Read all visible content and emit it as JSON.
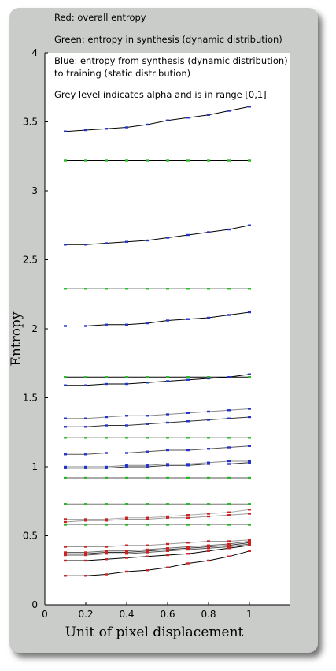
{
  "chart_data": {
    "type": "line",
    "title": "",
    "xlabel": "Unit of pixel displacement",
    "ylabel": "Entropy",
    "xlim": [
      0,
      1.2
    ],
    "ylim": [
      0,
      4
    ],
    "xticks": [
      "0",
      "0.2",
      "0.4",
      "0.6",
      "0.8",
      "1"
    ],
    "yticks": [
      "0",
      "0.5",
      "1",
      "1.5",
      "2",
      "2.5",
      "3",
      "3.5",
      "4"
    ],
    "grid": false,
    "legend_placement": "top-left",
    "annotations": [
      "Red: overall entropy",
      "Green: entropy in synthesis (dynamic distribution)",
      "Blue: entropy from synthesis (dynamic distribution)",
      "to training (static distribution)",
      "Grey level indicates alpha and is in range [0,1]"
    ],
    "colors": {
      "red": "#cc2222",
      "green": "#22bb22",
      "blue": "#2233cc"
    },
    "x": [
      0.1,
      0.2,
      0.3,
      0.4,
      0.5,
      0.6,
      0.7,
      0.8,
      0.9,
      1.0
    ],
    "series": [
      {
        "color": "blue",
        "line_color": "#000000",
        "values": [
          3.43,
          3.44,
          3.45,
          3.46,
          3.48,
          3.51,
          3.53,
          3.55,
          3.58,
          3.61
        ]
      },
      {
        "color": "green",
        "line_color": "#000000",
        "values": [
          3.22,
          3.22,
          3.22,
          3.22,
          3.22,
          3.22,
          3.22,
          3.22,
          3.22,
          3.22
        ]
      },
      {
        "color": "blue",
        "line_color": "#000000",
        "values": [
          2.61,
          2.61,
          2.62,
          2.63,
          2.64,
          2.66,
          2.68,
          2.7,
          2.72,
          2.75
        ]
      },
      {
        "color": "green",
        "line_color": "#000000",
        "values": [
          2.29,
          2.29,
          2.29,
          2.29,
          2.29,
          2.29,
          2.29,
          2.29,
          2.29,
          2.29
        ]
      },
      {
        "color": "blue",
        "line_color": "#000000",
        "values": [
          2.02,
          2.02,
          2.03,
          2.03,
          2.04,
          2.06,
          2.07,
          2.08,
          2.1,
          2.12
        ]
      },
      {
        "color": "green",
        "line_color": "#000000",
        "values": [
          1.65,
          1.65,
          1.65,
          1.65,
          1.65,
          1.65,
          1.65,
          1.65,
          1.65,
          1.65
        ]
      },
      {
        "color": "blue",
        "line_color": "#000000",
        "values": [
          1.59,
          1.59,
          1.6,
          1.6,
          1.61,
          1.62,
          1.63,
          1.64,
          1.65,
          1.67
        ]
      },
      {
        "color": "blue",
        "line_color": "#888888",
        "values": [
          1.35,
          1.35,
          1.36,
          1.37,
          1.37,
          1.38,
          1.39,
          1.4,
          1.41,
          1.42
        ]
      },
      {
        "color": "blue",
        "line_color": "#333333",
        "values": [
          1.29,
          1.29,
          1.3,
          1.3,
          1.31,
          1.32,
          1.33,
          1.34,
          1.35,
          1.36
        ]
      },
      {
        "color": "green",
        "line_color": "#333333",
        "values": [
          1.21,
          1.21,
          1.21,
          1.21,
          1.21,
          1.21,
          1.21,
          1.21,
          1.21,
          1.21
        ]
      },
      {
        "color": "blue",
        "line_color": "#555555",
        "values": [
          1.09,
          1.09,
          1.1,
          1.1,
          1.11,
          1.12,
          1.12,
          1.13,
          1.14,
          1.15
        ]
      },
      {
        "color": "blue",
        "line_color": "#888888",
        "values": [
          1.0,
          1.0,
          1.0,
          1.01,
          1.01,
          1.02,
          1.02,
          1.03,
          1.04,
          1.04
        ]
      },
      {
        "color": "blue",
        "line_color": "#333333",
        "values": [
          0.99,
          0.99,
          0.99,
          1.0,
          1.0,
          1.01,
          1.01,
          1.02,
          1.02,
          1.03
        ]
      },
      {
        "color": "green",
        "line_color": "#555555",
        "values": [
          0.92,
          0.92,
          0.92,
          0.92,
          0.92,
          0.92,
          0.92,
          0.92,
          0.92,
          0.92
        ]
      },
      {
        "color": "green",
        "line_color": "#777777",
        "values": [
          0.73,
          0.73,
          0.73,
          0.73,
          0.73,
          0.73,
          0.73,
          0.73,
          0.73,
          0.73
        ]
      },
      {
        "color": "red",
        "line_color": "#aaaaaa",
        "values": [
          0.62,
          0.62,
          0.62,
          0.63,
          0.63,
          0.64,
          0.65,
          0.66,
          0.67,
          0.69
        ]
      },
      {
        "color": "red",
        "line_color": "#999999",
        "values": [
          0.6,
          0.61,
          0.61,
          0.62,
          0.62,
          0.63,
          0.63,
          0.64,
          0.65,
          0.66
        ]
      },
      {
        "color": "green",
        "line_color": "#aaaaaa",
        "values": [
          0.58,
          0.58,
          0.58,
          0.58,
          0.58,
          0.58,
          0.58,
          0.58,
          0.58,
          0.58
        ]
      },
      {
        "color": "red",
        "line_color": "#999999",
        "values": [
          0.42,
          0.42,
          0.42,
          0.43,
          0.43,
          0.44,
          0.45,
          0.46,
          0.46,
          0.47
        ]
      },
      {
        "color": "red",
        "line_color": "#666666",
        "values": [
          0.38,
          0.38,
          0.39,
          0.39,
          0.4,
          0.41,
          0.42,
          0.43,
          0.44,
          0.46
        ]
      },
      {
        "color": "red",
        "line_color": "#333333",
        "values": [
          0.37,
          0.37,
          0.38,
          0.38,
          0.39,
          0.4,
          0.41,
          0.42,
          0.43,
          0.45
        ]
      },
      {
        "color": "red",
        "line_color": "#555555",
        "values": [
          0.36,
          0.36,
          0.37,
          0.37,
          0.38,
          0.39,
          0.4,
          0.41,
          0.42,
          0.44
        ]
      },
      {
        "color": "red",
        "line_color": "#000000",
        "values": [
          0.32,
          0.32,
          0.33,
          0.34,
          0.35,
          0.36,
          0.37,
          0.39,
          0.41,
          0.43
        ]
      },
      {
        "color": "red",
        "line_color": "#000000",
        "values": [
          0.21,
          0.21,
          0.22,
          0.24,
          0.25,
          0.27,
          0.3,
          0.32,
          0.35,
          0.39
        ]
      }
    ]
  }
}
